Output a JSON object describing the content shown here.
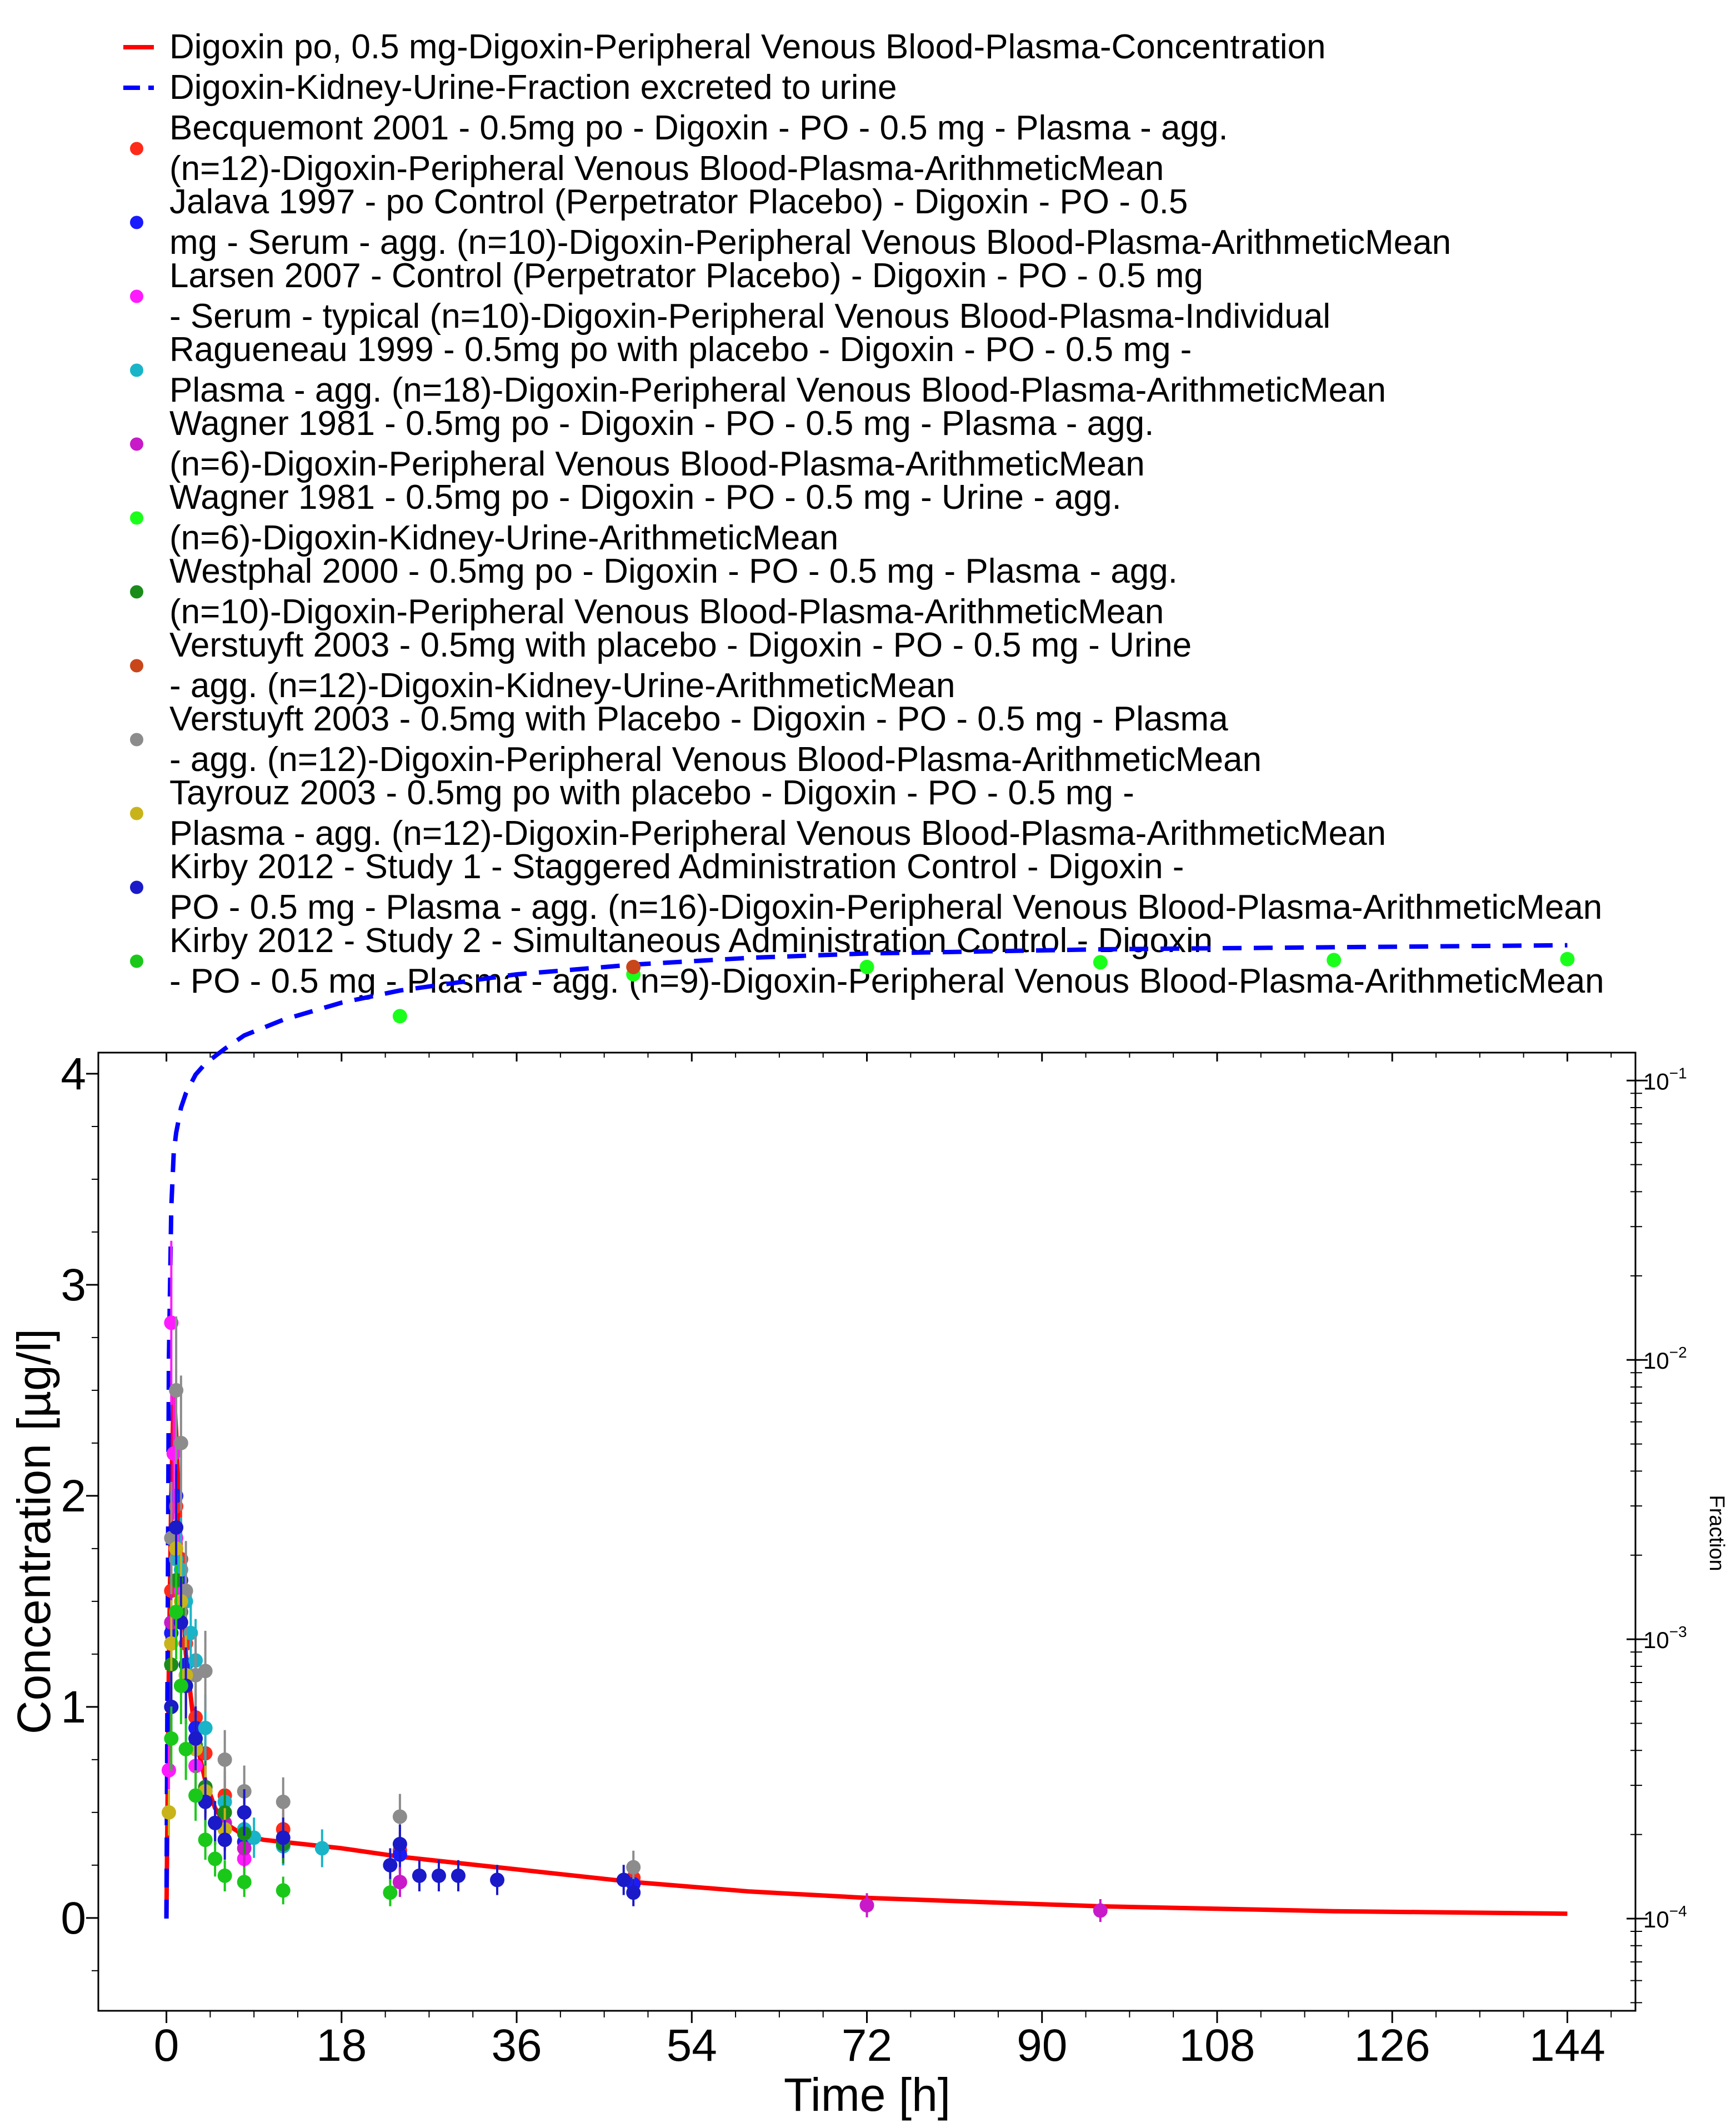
{
  "chart_data": {
    "type": "line",
    "xlabel": "Time [h]",
    "ylabel": "Concentration [µg/l]",
    "y2label": "Fraction",
    "xlim": [
      -7,
      151
    ],
    "ylim": [
      -0.44,
      4.1
    ],
    "y2lim_log10": [
      -4.33,
      -0.9
    ],
    "y2scale": "log",
    "grid": false,
    "legend_position": "top",
    "xticks": [
      {
        "value": 0,
        "label": "0"
      },
      {
        "value": 18,
        "label": "18"
      },
      {
        "value": 36,
        "label": "36"
      },
      {
        "value": 54,
        "label": "54"
      },
      {
        "value": 72,
        "label": "72"
      },
      {
        "value": 90,
        "label": "90"
      },
      {
        "value": 108,
        "label": "108"
      },
      {
        "value": 126,
        "label": "126"
      },
      {
        "value": 144,
        "label": "144"
      }
    ],
    "yticks": [
      {
        "value": 0,
        "label": "0"
      },
      {
        "value": 1,
        "label": "1"
      },
      {
        "value": 2,
        "label": "2"
      },
      {
        "value": 3,
        "label": "3"
      },
      {
        "value": 4,
        "label": "4"
      }
    ],
    "y2ticks": [
      {
        "exp": -4,
        "base": "10",
        "sup": "−4"
      },
      {
        "exp": -3,
        "base": "10",
        "sup": "−3"
      },
      {
        "exp": -2,
        "base": "10",
        "sup": "−2"
      },
      {
        "exp": -1,
        "base": "10",
        "sup": "−1"
      }
    ],
    "series": [
      {
        "name": "Digoxin po, 0.5 mg-Digoxin-Peripheral Venous Blood-Plasma-Concentration",
        "kind": "line",
        "axis": "left",
        "color": "#ff0000",
        "x": [
          0,
          0.25,
          0.5,
          0.75,
          1,
          1.5,
          2,
          3,
          4,
          5,
          6,
          8,
          10,
          12,
          18,
          24,
          36,
          48,
          60,
          72,
          96,
          120,
          144
        ],
        "y": [
          0,
          1.2,
          2.0,
          2.5,
          2.3,
          1.7,
          1.25,
          0.85,
          0.65,
          0.52,
          0.45,
          0.39,
          0.37,
          0.36,
          0.33,
          0.29,
          0.23,
          0.17,
          0.125,
          0.095,
          0.055,
          0.032,
          0.02
        ]
      },
      {
        "name": "Digoxin-Kidney-Urine-Fraction excreted to urine",
        "kind": "dashed-line",
        "axis": "right",
        "color": "#0000ff",
        "x": [
          0,
          0.25,
          0.5,
          0.75,
          1,
          1.5,
          2,
          3,
          4,
          6,
          8,
          12,
          18,
          24,
          36,
          48,
          60,
          72,
          96,
          120,
          144
        ],
        "y": [
          0.0001,
          0.01,
          0.035,
          0.055,
          0.065,
          0.08,
          0.09,
          0.105,
          0.115,
          0.13,
          0.145,
          0.165,
          0.19,
          0.21,
          0.24,
          0.26,
          0.275,
          0.285,
          0.295,
          0.3,
          0.305
        ]
      },
      {
        "name": "Becquemont 2001 - 0.5mg po - Digoxin - PO - 0.5 mg - Plasma - agg. (n=12)-Digoxin-Peripheral Venous Blood-Plasma-ArithmeticMean",
        "kind": "points",
        "axis": "left",
        "color": "#ff2a1a",
        "x": [
          0.5,
          1,
          1.5,
          2,
          3,
          4,
          6,
          8,
          12,
          24,
          48
        ],
        "y": [
          1.55,
          1.95,
          1.7,
          1.3,
          0.95,
          0.78,
          0.58,
          0.5,
          0.42,
          0.32,
          0.19
        ]
      },
      {
        "name": "Jalava 1997 - po Control (Perpetrator Placebo) - Digoxin - PO - 0.5 mg - Serum - agg. (n=10)-Digoxin-Peripheral Venous Blood-Plasma-ArithmeticMean",
        "kind": "points",
        "axis": "left",
        "color": "#1a1aff",
        "x": [
          0.5,
          1,
          1.5,
          2,
          3,
          4,
          5,
          6,
          8,
          12,
          24,
          48
        ],
        "y": [
          1.35,
          2.0,
          1.6,
          1.2,
          0.9,
          0.6,
          0.45,
          0.42,
          0.36,
          0.34,
          0.3,
          0.16
        ]
      },
      {
        "name": "Larsen 2007 - Control (Perpetrator Placebo) - Digoxin - PO - 0.5 mg - Serum - typical (n=10)-Digoxin-Peripheral Venous Blood-Plasma-Individual",
        "kind": "points",
        "axis": "left",
        "color": "#ff1aff",
        "x": [
          0.25,
          0.5,
          0.75,
          1,
          1.5,
          2,
          3,
          4,
          6,
          8,
          24
        ],
        "y": [
          0.7,
          2.82,
          2.2,
          1.8,
          1.55,
          1.15,
          0.72,
          0.6,
          0.42,
          0.28,
          0.17
        ]
      },
      {
        "name": "Ragueneau 1999 - 0.5mg po with placebo - Digoxin - PO - 0.5 mg - Plasma - agg. (n=18)-Digoxin-Peripheral Venous Blood-Plasma-ArithmeticMean",
        "kind": "points",
        "axis": "left",
        "color": "#1ab4c8",
        "x": [
          0.5,
          1,
          1.5,
          2,
          2.5,
          3,
          4,
          6,
          8,
          9,
          12,
          16
        ],
        "y": [
          1.0,
          1.7,
          1.65,
          1.5,
          1.35,
          1.22,
          0.9,
          0.55,
          0.42,
          0.38,
          0.34,
          0.33
        ]
      },
      {
        "name": "Wagner 1981 - 0.5mg po - Digoxin - PO - 0.5 mg - Plasma - agg. (n=6)-Digoxin-Peripheral Venous Blood-Plasma-ArithmeticMean",
        "kind": "points",
        "axis": "left",
        "color": "#c81ac8",
        "x": [
          0.5,
          1,
          2,
          3,
          4,
          6,
          8,
          24,
          72,
          96
        ],
        "y": [
          1.4,
          1.75,
          1.1,
          0.8,
          0.62,
          0.45,
          0.33,
          0.17,
          0.06,
          0.035
        ]
      },
      {
        "name": "Wagner 1981 - 0.5mg po - Digoxin - PO - 0.5 mg - Urine - agg. (n=6)-Digoxin-Kidney-Urine-ArithmeticMean",
        "kind": "points",
        "axis": "right",
        "color": "#1aff1a",
        "x": [
          24,
          48,
          72,
          96,
          120,
          144
        ],
        "y": [
          0.17,
          0.24,
          0.255,
          0.265,
          0.27,
          0.272
        ]
      },
      {
        "name": "Westphal 2000 - 0.5mg po - Digoxin - PO - 0.5 mg - Plasma - agg. (n=10)-Digoxin-Peripheral Venous Blood-Plasma-ArithmeticMean",
        "kind": "points",
        "axis": "left",
        "color": "#1a8c1a",
        "x": [
          0.5,
          1,
          1.5,
          2,
          3,
          4,
          6,
          8,
          12
        ],
        "y": [
          1.2,
          1.6,
          1.45,
          1.1,
          0.82,
          0.62,
          0.5,
          0.4,
          0.35
        ]
      },
      {
        "name": "Verstuyft 2003 - 0.5mg with placebo - Digoxin - PO - 0.5 mg - Urine - agg. (n=12)-Digoxin-Kidney-Urine-ArithmeticMean",
        "kind": "points",
        "axis": "right",
        "color": "#c8461a",
        "x": [
          48
        ],
        "y": [
          0.255
        ]
      },
      {
        "name": "Verstuyft 2003 - 0.5mg with Placebo - Digoxin - PO - 0.5 mg - Plasma - agg. (n=12)-Digoxin-Peripheral Venous Blood-Plasma-ArithmeticMean",
        "kind": "points",
        "axis": "left",
        "color": "#8c8c8c",
        "x": [
          0.5,
          1,
          1.5,
          2,
          3,
          4,
          6,
          8,
          12,
          24,
          48
        ],
        "y": [
          1.8,
          2.5,
          2.25,
          1.55,
          1.15,
          1.17,
          0.75,
          0.6,
          0.55,
          0.48,
          0.24
        ]
      },
      {
        "name": "Tayrouz 2003 - 0.5mg po with placebo - Digoxin - PO - 0.5 mg - Plasma - agg. (n=12)-Digoxin-Peripheral Venous Blood-Plasma-ArithmeticMean",
        "kind": "points",
        "axis": "left",
        "color": "#c8b41a",
        "x": [
          0.25,
          0.5,
          1,
          1.5,
          2,
          3,
          4,
          6
        ],
        "y": [
          0.5,
          1.3,
          1.75,
          1.5,
          1.15,
          0.8,
          0.6,
          0.42
        ]
      },
      {
        "name": "Kirby 2012 - Study 1 - Staggered Administration Control - Digoxin - PO - 0.5 mg - Plasma - agg. (n=16)-Digoxin-Peripheral Venous Blood-Plasma-ArithmeticMean",
        "kind": "points",
        "axis": "left",
        "color": "#1a1ac8",
        "x": [
          0.5,
          1,
          1.5,
          2,
          3,
          4,
          5,
          6,
          8,
          12,
          23,
          24,
          26,
          28,
          30,
          34,
          47,
          48
        ],
        "y": [
          1.0,
          1.85,
          1.4,
          1.1,
          0.85,
          0.55,
          0.45,
          0.37,
          0.5,
          0.38,
          0.25,
          0.35,
          0.2,
          0.2,
          0.2,
          0.18,
          0.18,
          0.12
        ]
      },
      {
        "name": "Kirby 2012 - Study 2 - Simultaneous Administration Control - Digoxin - PO - 0.5 mg - Plasma - agg. (n=9)-Digoxin-Peripheral Venous Blood-Plasma-ArithmeticMean",
        "kind": "points",
        "axis": "left",
        "color": "#1ac81a",
        "x": [
          0.5,
          1,
          1.5,
          2,
          3,
          4,
          5,
          6,
          8,
          12,
          23
        ],
        "y": [
          0.85,
          1.45,
          1.1,
          0.8,
          0.58,
          0.37,
          0.28,
          0.2,
          0.17,
          0.13,
          0.12
        ]
      }
    ]
  }
}
